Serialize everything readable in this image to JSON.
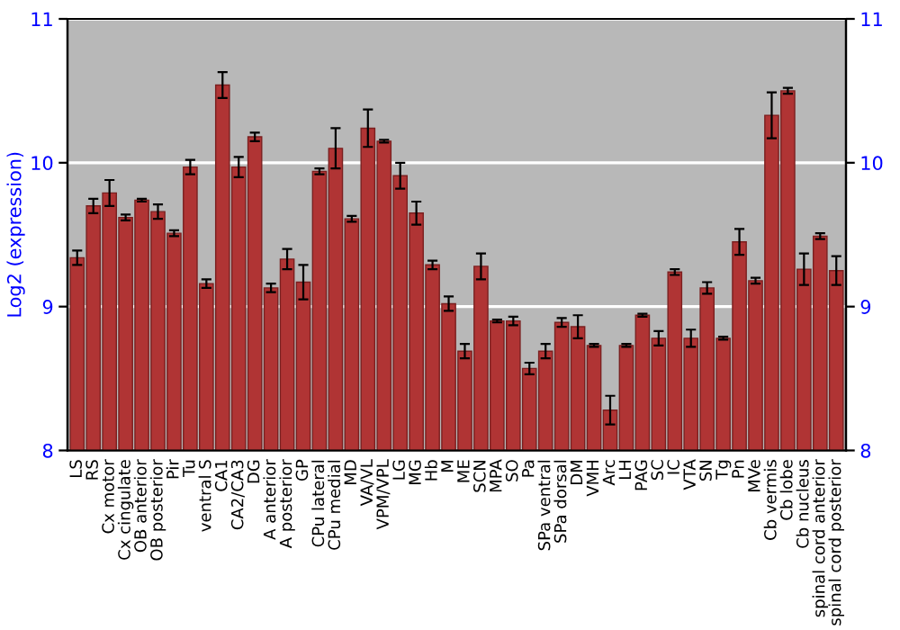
{
  "chart_data": {
    "type": "bar",
    "ylabel": "Log2 (expression)",
    "categories": [
      "LS",
      "RS",
      "Cx motor",
      "Cx cingulate",
      "OB anterior",
      "OB posterior",
      "Pir",
      "Tu",
      "ventral S",
      "CA1",
      "CA2/CA3",
      "DG",
      "A anterior",
      "A posterior",
      "GP",
      "CPu lateral",
      "CPu medial",
      "MD",
      "VA/VL",
      "VPM/VPL",
      "LG",
      "MG",
      "Hb",
      "M",
      "ME",
      "SCN",
      "MPA",
      "SO",
      "Pa",
      "SPa ventral",
      "SPa dorsal",
      "DM",
      "VMH",
      "Arc",
      "LH",
      "PAG",
      "SC",
      "IC",
      "VTA",
      "SN",
      "Tg",
      "Pn",
      "MVe",
      "Cb vermis",
      "Cb lobe",
      "Cb nucleus",
      "spinal cord anterior",
      "spinal cord posterior"
    ],
    "values": [
      9.34,
      9.7,
      9.79,
      9.62,
      9.74,
      9.66,
      9.51,
      9.97,
      9.16,
      10.54,
      9.97,
      10.18,
      9.13,
      9.33,
      9.17,
      9.94,
      10.1,
      9.61,
      10.24,
      10.15,
      9.91,
      9.65,
      9.29,
      9.02,
      8.69,
      9.28,
      8.9,
      8.9,
      8.57,
      8.69,
      8.89,
      8.86,
      8.73,
      8.28,
      8.73,
      8.94,
      8.78,
      9.24,
      8.78,
      9.13,
      8.78,
      9.45,
      9.18,
      10.33,
      10.5,
      9.26,
      9.49,
      9.25
    ],
    "errors": [
      0.05,
      0.05,
      0.09,
      0.02,
      0.01,
      0.05,
      0.02,
      0.05,
      0.03,
      0.09,
      0.07,
      0.03,
      0.03,
      0.07,
      0.12,
      0.02,
      0.14,
      0.02,
      0.13,
      0.01,
      0.09,
      0.08,
      0.03,
      0.05,
      0.05,
      0.09,
      0.01,
      0.03,
      0.04,
      0.05,
      0.03,
      0.08,
      0.01,
      0.1,
      0.01,
      0.01,
      0.05,
      0.02,
      0.06,
      0.04,
      0.01,
      0.09,
      0.02,
      0.16,
      0.02,
      0.11,
      0.02,
      0.1
    ],
    "color": "#b03434",
    "ylim": [
      8,
      11
    ],
    "yticks": [
      8,
      9,
      10,
      11
    ],
    "y2lim": [
      8,
      11
    ],
    "y2ticks": [
      8,
      9,
      10,
      11
    ],
    "grid": "y"
  }
}
